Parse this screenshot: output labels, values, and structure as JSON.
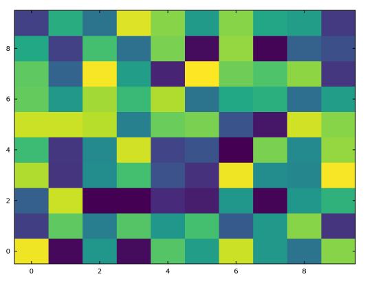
{
  "chart_data": {
    "type": "heatmap",
    "title": "",
    "xlabel": "",
    "ylabel": "",
    "colormap": "viridis",
    "value_range": [
      0,
      1
    ],
    "grid": false,
    "legend": "none",
    "x": [
      0,
      1,
      2,
      3,
      4,
      5,
      6,
      7,
      8,
      9
    ],
    "y": [
      0,
      1,
      2,
      3,
      4,
      5,
      6,
      7,
      8,
      9
    ],
    "xlim": [
      -0.5,
      9.5
    ],
    "ylim": [
      -0.5,
      9.5
    ],
    "x_ticks": [
      0,
      2,
      4,
      6,
      8
    ],
    "y_ticks": [
      0,
      2,
      4,
      6,
      8
    ],
    "x_tick_labels": [
      "0",
      "2",
      "4",
      "6",
      "8"
    ],
    "y_tick_labels": [
      "0",
      "2",
      "4",
      "6",
      "8"
    ],
    "values": [
      [
        0.98,
        0.02,
        0.52,
        0.03,
        0.73,
        0.55,
        0.92,
        0.53,
        0.38,
        0.82
      ],
      [
        0.18,
        0.75,
        0.42,
        0.73,
        0.52,
        0.7,
        0.28,
        0.53,
        0.82,
        0.15
      ],
      [
        0.3,
        0.92,
        0.0,
        0.0,
        0.12,
        0.08,
        0.52,
        0.01,
        0.52,
        0.64
      ],
      [
        0.88,
        0.15,
        0.48,
        0.7,
        0.25,
        0.14,
        0.98,
        0.48,
        0.46,
        0.99
      ],
      [
        0.68,
        0.16,
        0.47,
        0.93,
        0.2,
        0.26,
        0.0,
        0.8,
        0.47,
        0.84
      ],
      [
        0.92,
        0.92,
        0.89,
        0.43,
        0.77,
        0.8,
        0.26,
        0.06,
        0.93,
        0.82
      ],
      [
        0.76,
        0.53,
        0.86,
        0.67,
        0.88,
        0.38,
        0.6,
        0.63,
        0.36,
        0.55
      ],
      [
        0.75,
        0.32,
        0.99,
        0.55,
        0.1,
        1.0,
        0.78,
        0.72,
        0.83,
        0.16
      ],
      [
        0.6,
        0.19,
        0.7,
        0.37,
        0.8,
        0.03,
        0.84,
        0.01,
        0.31,
        0.24
      ],
      [
        0.19,
        0.62,
        0.38,
        0.95,
        0.82,
        0.54,
        0.82,
        0.59,
        0.55,
        0.17
      ]
    ]
  }
}
